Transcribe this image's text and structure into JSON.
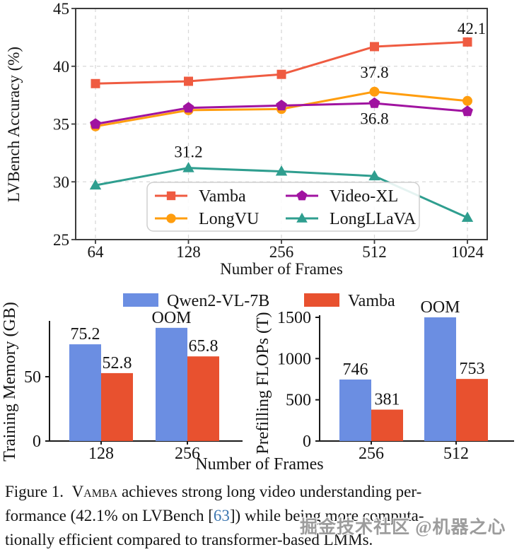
{
  "colors": {
    "vamba_line": "#ef5b41",
    "longvu": "#ff9d0e",
    "videoxl": "#a013a0",
    "longllava": "#2f9e8f",
    "qwen_bar": "#6b8ee2",
    "vamba_bar": "#e8512f",
    "grid": "#d9d9d9",
    "spine": "#3c3c3c",
    "citation_blue": "#3d77b0",
    "watermark_gray": "#949494"
  },
  "chart_data": [
    {
      "type": "line",
      "title": "",
      "xlabel": "Number of Frames",
      "ylabel": "LVBench Accuracy (%)",
      "x_ticks": [
        "64",
        "128",
        "256",
        "512",
        "1024"
      ],
      "y_ticks": [
        25,
        30,
        35,
        40,
        45
      ],
      "ylim": [
        25,
        45
      ],
      "grid": true,
      "legend_position": "lower center inside plot, 2 columns",
      "series": [
        {
          "name": "Vamba",
          "marker": "square",
          "color": "#ef5b41",
          "values": [
            38.5,
            38.7,
            39.3,
            41.7,
            42.1
          ]
        },
        {
          "name": "LongVU",
          "marker": "circle",
          "color": "#ff9d0e",
          "values": [
            34.8,
            36.2,
            36.3,
            37.8,
            37.0
          ]
        },
        {
          "name": "Video-XL",
          "marker": "pentagon",
          "color": "#a013a0",
          "values": [
            35.0,
            36.4,
            36.6,
            36.8,
            36.1
          ]
        },
        {
          "name": "LongLLaVA",
          "marker": "triangle",
          "color": "#2f9e8f",
          "values": [
            29.7,
            31.2,
            30.9,
            30.5,
            26.9
          ]
        }
      ],
      "annotations": [
        {
          "text": "42.1",
          "x": "1024",
          "y": 43.3,
          "color": "#ef5b41"
        },
        {
          "text": "37.8",
          "x": "512",
          "y": 39.5,
          "color": "#ff9d0e"
        },
        {
          "text": "36.8",
          "x": "512",
          "y": 35.5,
          "color": "#a013a0"
        },
        {
          "text": "31.2",
          "x": "128",
          "y": 32.6,
          "color": "#2f9e8f"
        }
      ]
    },
    {
      "type": "bar",
      "title": "",
      "xlabel": "Number of Frames",
      "ylabel": "Training Memory (GB)",
      "categories": [
        "128",
        "256"
      ],
      "y_ticks": [
        0,
        50
      ],
      "ylim": [
        0,
        93
      ],
      "grid": false,
      "series": [
        {
          "name": "Qwen2-VL-7B",
          "color": "#6b8ee2",
          "values": [
            75.2,
            null
          ],
          "bar_tops": [
            75.2,
            88
          ],
          "labels": [
            "75.2",
            "OOM"
          ]
        },
        {
          "name": "Vamba",
          "color": "#e8512f",
          "values": [
            52.8,
            65.8
          ],
          "bar_tops": [
            52.8,
            65.8
          ],
          "labels": [
            "52.8",
            "65.8"
          ]
        }
      ]
    },
    {
      "type": "bar",
      "title": "",
      "xlabel": "Number of Frames",
      "ylabel": "Prefilling FLOPs (T)",
      "categories": [
        "256",
        "512"
      ],
      "y_ticks": [
        0,
        500,
        1000,
        1500
      ],
      "ylim": [
        0,
        1530
      ],
      "grid": false,
      "series": [
        {
          "name": "Qwen2-VL-7B",
          "color": "#6b8ee2",
          "values": [
            746,
            null
          ],
          "bar_tops": [
            746,
            1500
          ],
          "labels": [
            "746",
            "OOM"
          ]
        },
        {
          "name": "Vamba",
          "color": "#e8512f",
          "values": [
            381,
            753
          ],
          "bar_tops": [
            381,
            753
          ],
          "labels": [
            "381",
            "753"
          ]
        }
      ]
    }
  ],
  "bottom_figure": {
    "legend": [
      {
        "label": "Qwen2-VL-7B",
        "color": "#6b8ee2"
      },
      {
        "label": "Vamba",
        "color": "#e8512f"
      }
    ],
    "shared_xlabel": "Number of Frames"
  },
  "caption": {
    "label": "Figure 1.",
    "lines": [
      [
        {
          "t": "Figure 1.  "
        },
        {
          "t": "Vamba",
          "s": "sc"
        },
        {
          "t": " achieves strong long video understanding per-"
        }
      ],
      [
        {
          "t": "formance (42.1% on LVBench ["
        },
        {
          "t": "63",
          "s": "cite"
        },
        {
          "t": "]) while being more computa-"
        }
      ],
      [
        {
          "t": "tionally efficient compared to transformer-based LMMs."
        }
      ]
    ]
  },
  "watermark": {
    "text": "掘金技术社区 @机器之心"
  }
}
